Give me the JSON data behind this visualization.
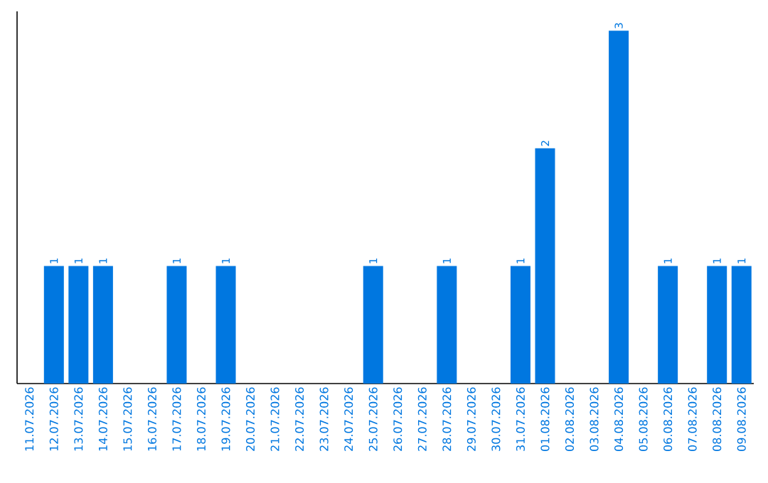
{
  "chart_data": {
    "type": "bar",
    "color": "#0077e0",
    "categories": [
      "11.07.2026",
      "12.07.2026",
      "13.07.2026",
      "14.07.2026",
      "15.07.2026",
      "16.07.2026",
      "17.07.2026",
      "18.07.2026",
      "19.07.2026",
      "20.07.2026",
      "21.07.2026",
      "22.07.2026",
      "23.07.2026",
      "24.07.2026",
      "25.07.2026",
      "26.07.2026",
      "27.07.2026",
      "28.07.2026",
      "29.07.2026",
      "30.07.2026",
      "31.07.2026",
      "01.08.2026",
      "02.08.2026",
      "03.08.2026",
      "04.08.2026",
      "05.08.2026",
      "06.08.2026",
      "07.08.2026",
      "08.08.2026",
      "09.08.2026"
    ],
    "values": [
      0,
      1,
      1,
      1,
      0,
      0,
      1,
      0,
      1,
      0,
      0,
      0,
      0,
      0,
      1,
      0,
      0,
      1,
      0,
      0,
      1,
      2,
      0,
      0,
      3,
      0,
      1,
      0,
      1,
      1
    ],
    "value_labels": [
      null,
      "1",
      "1",
      "1",
      null,
      null,
      "1",
      null,
      "1",
      null,
      null,
      null,
      null,
      null,
      "1",
      null,
      null,
      "1",
      null,
      null,
      "1",
      "2",
      null,
      null,
      "3",
      null,
      "1",
      null,
      "1",
      "1"
    ]
  }
}
